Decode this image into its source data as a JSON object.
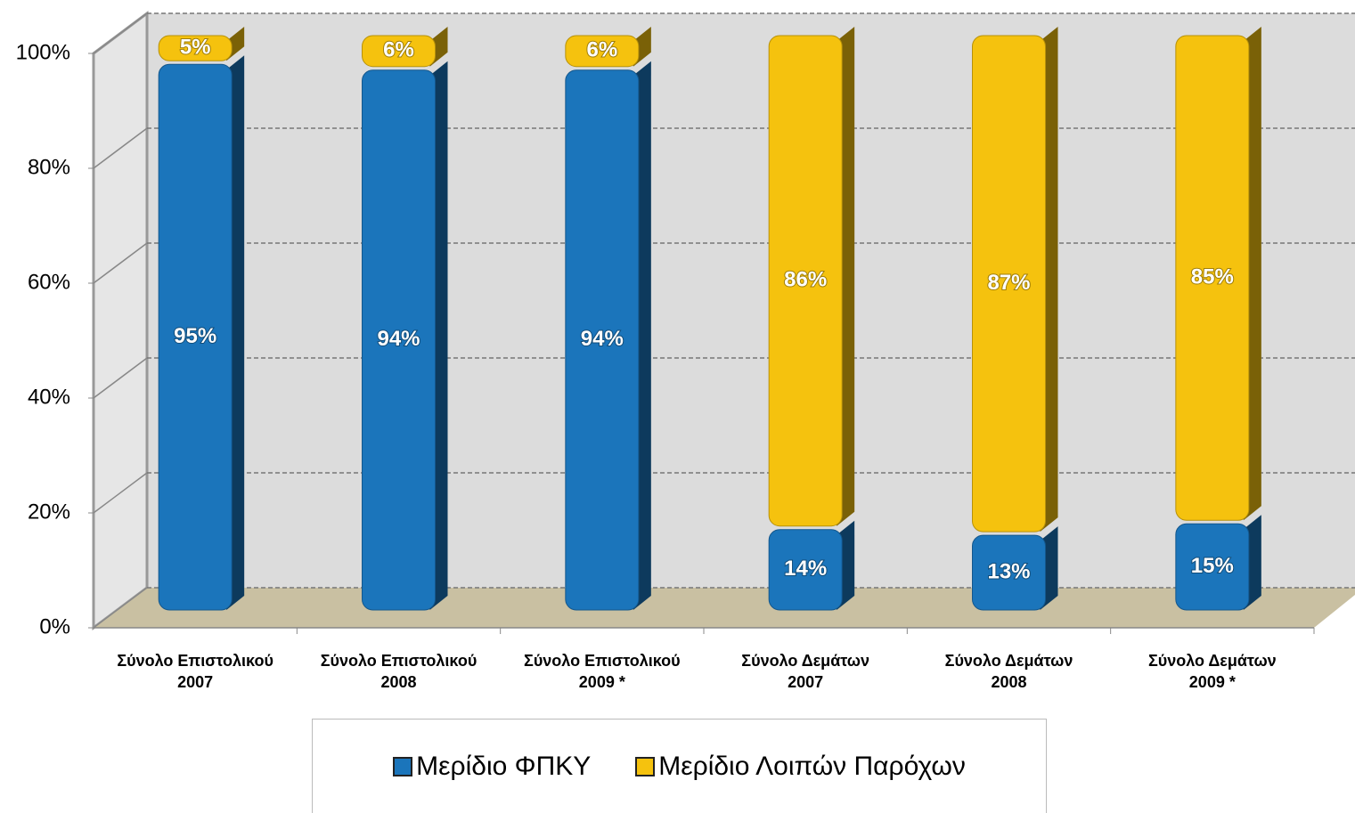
{
  "chart_data": {
    "type": "stacked_bar",
    "categories": [
      "Σύνολο Επιστολικού 2007",
      "Σύνολο Επιστολικού 2008",
      "Σύνολο Επιστολικού 2009 *",
      "Σύνολο Δεμάτων 2007",
      "Σύνολο Δεμάτων 2008",
      "Σύνολο Δεμάτων 2009 *"
    ],
    "series": [
      {
        "name": "Μερίδιο ΦΠΚΥ",
        "color": "#1b75bb",
        "values": [
          95,
          94,
          94,
          14,
          13,
          15
        ],
        "value_labels": [
          "95%",
          "94%",
          "94%",
          "14%",
          "13%",
          "15%"
        ]
      },
      {
        "name": "Μερίδιο Λοιπών Παρόχων",
        "color": "#f5c20e",
        "values": [
          5,
          6,
          6,
          86,
          87,
          85
        ],
        "value_labels": [
          "5%",
          "6%",
          "6%",
          "86%",
          "87%",
          "85%"
        ]
      }
    ],
    "ylim": [
      0,
      100
    ],
    "yticks": [
      {
        "value": 0,
        "label": "0%"
      },
      {
        "value": 20,
        "label": "20%"
      },
      {
        "value": 40,
        "label": "40%"
      },
      {
        "value": 60,
        "label": "60%"
      },
      {
        "value": 80,
        "label": "80%"
      },
      {
        "value": 100,
        "label": "100%"
      }
    ],
    "grid": true,
    "legend": "bottom"
  }
}
